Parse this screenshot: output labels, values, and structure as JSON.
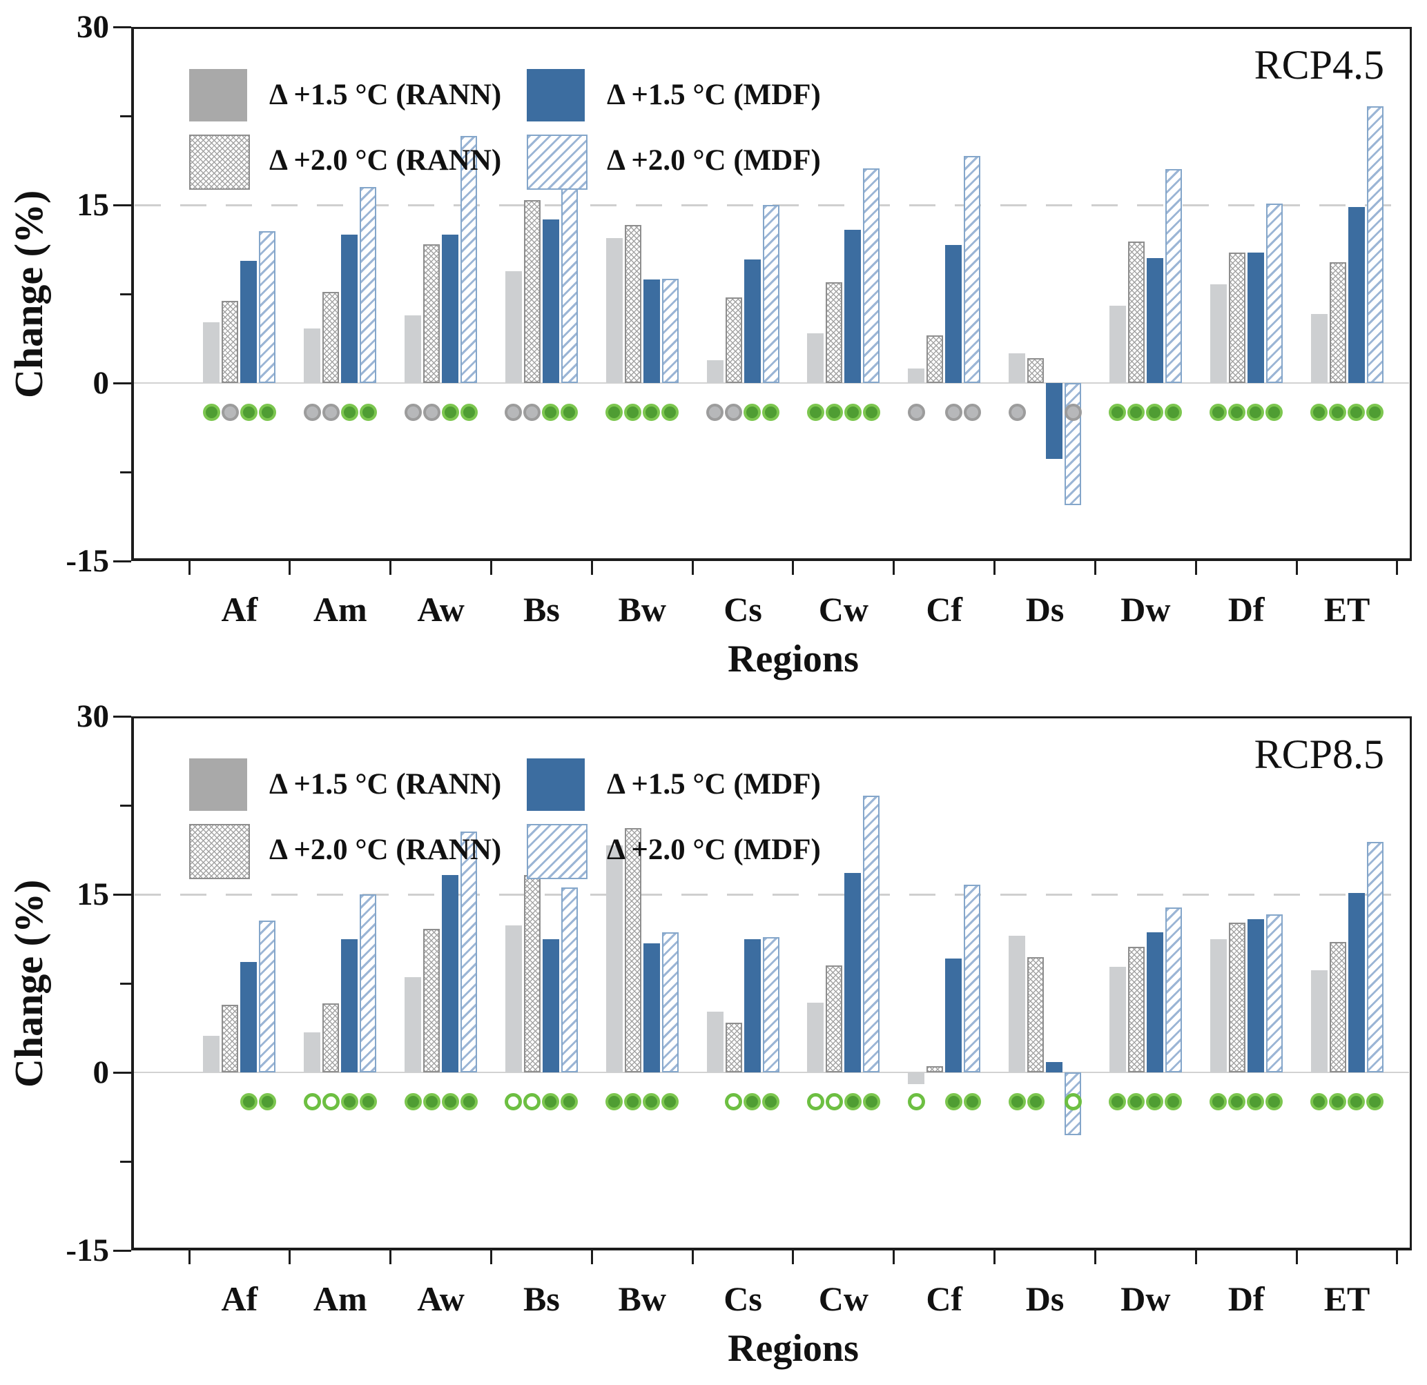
{
  "figure": {
    "ylabel": "Change (%)",
    "xlabel": "Regions",
    "legend": [
      {
        "label": "Δ +1.5 °C (RANN)",
        "style": "gray-solid"
      },
      {
        "label": "Δ +2.0 °C (RANN)",
        "style": "gray-crosshatch"
      },
      {
        "label": "Δ +1.5 °C (MDF)",
        "style": "blue-solid"
      },
      {
        "label": "Δ +2.0 °C (MDF)",
        "style": "blue-hatch"
      }
    ],
    "colors": {
      "bar_gray": "#cdcfd1",
      "legend_gray": "#a9a9a9",
      "bar_blue": "#3c6da0",
      "hatch_blue": "#9bb5d5",
      "hatch_blue_border": "#84a6ca",
      "hatch_gray": "#a3a3a3",
      "hatch_gray_border": "#8e8e8e",
      "axis_black": "#1c1c1c",
      "grid_gray": "#cfcfcf",
      "marker_green_fill": "#4f9d33",
      "marker_green_ring": "#7cc64f",
      "marker_gray_fill": "#b7b8ba",
      "marker_gray_ring": "#9c9c9c",
      "marker_open_ring": "#6dbf42"
    }
  },
  "chart_data": [
    {
      "type": "bar",
      "title": "RCP4.5",
      "xlabel": "Regions",
      "ylabel": "Change (%)",
      "ylim": [
        -15,
        30
      ],
      "ytick_values": [
        30,
        15,
        0,
        -15
      ],
      "ytick_labels": [
        "30",
        "15",
        "0",
        "-15"
      ],
      "minor_ytick_values": [
        22.5,
        7.5,
        -7.5
      ],
      "reference_line_y": 15,
      "grid": false,
      "legend_position": "top-left",
      "categories": [
        "Af",
        "Am",
        "Aw",
        "Bs",
        "Bw",
        "Cs",
        "Cw",
        "Cf",
        "Ds",
        "Dw",
        "Df",
        "ET"
      ],
      "series": [
        {
          "name": "Δ +1.5 °C (RANN)",
          "style": "gray-solid",
          "values": [
            5.1,
            4.6,
            5.7,
            9.4,
            12.2,
            1.9,
            4.2,
            1.2,
            2.5,
            6.5,
            8.3,
            5.8
          ]
        },
        {
          "name": "Δ +2.0 °C (RANN)",
          "style": "gray-crosshatch",
          "values": [
            6.9,
            7.7,
            11.7,
            15.4,
            13.3,
            7.2,
            8.5,
            4.0,
            2.1,
            11.9,
            11.0,
            10.2
          ]
        },
        {
          "name": "Δ +1.5 °C (MDF)",
          "style": "blue-solid",
          "values": [
            10.3,
            12.5,
            12.5,
            13.8,
            8.7,
            10.4,
            12.9,
            11.6,
            -6.4,
            10.5,
            11.0,
            14.8
          ]
        },
        {
          "name": "Δ +2.0 °C (MDF)",
          "style": "blue-hatch",
          "values": [
            12.8,
            16.5,
            20.8,
            17.9,
            8.8,
            15.0,
            18.1,
            19.1,
            -10.3,
            18.0,
            15.1,
            23.3
          ]
        }
      ],
      "significance_markers": [
        [
          "green",
          "gray",
          "green",
          "green"
        ],
        [
          "gray",
          "gray",
          "green",
          "green"
        ],
        [
          "gray",
          "gray",
          "green",
          "green"
        ],
        [
          "gray",
          "gray",
          "green",
          "green"
        ],
        [
          "green",
          "green",
          "green",
          "green"
        ],
        [
          "gray",
          "gray",
          "green",
          "green"
        ],
        [
          "green",
          "green",
          "green",
          "green"
        ],
        [
          "gray",
          null,
          "gray",
          "gray"
        ],
        [
          "gray",
          null,
          null,
          "gray"
        ],
        [
          "green",
          "green",
          "green",
          "green"
        ],
        [
          "green",
          "green",
          "green",
          "green"
        ],
        [
          "green",
          "green",
          "green",
          "green"
        ]
      ]
    },
    {
      "type": "bar",
      "title": "RCP8.5",
      "xlabel": "Regions",
      "ylabel": "Change (%)",
      "ylim": [
        -15,
        30
      ],
      "ytick_values": [
        30,
        15,
        0,
        -15
      ],
      "ytick_labels": [
        "30",
        "15",
        "0",
        "-15"
      ],
      "minor_ytick_values": [
        22.5,
        7.5,
        -7.5
      ],
      "reference_line_y": 15,
      "grid": false,
      "legend_position": "top-left",
      "categories": [
        "Af",
        "Am",
        "Aw",
        "Bs",
        "Bw",
        "Cs",
        "Cw",
        "Cf",
        "Ds",
        "Dw",
        "Df",
        "ET"
      ],
      "series": [
        {
          "name": "Δ +1.5 °C (RANN)",
          "style": "gray-solid",
          "values": [
            3.1,
            3.4,
            8.0,
            12.4,
            19.1,
            5.1,
            5.9,
            -1.0,
            11.5,
            8.9,
            11.2,
            8.6
          ]
        },
        {
          "name": "Δ +2.0 °C (RANN)",
          "style": "gray-crosshatch",
          "values": [
            5.7,
            5.8,
            12.1,
            16.6,
            20.6,
            4.2,
            9.0,
            0.5,
            9.7,
            10.6,
            12.6,
            11.0
          ]
        },
        {
          "name": "Δ +1.5 °C (MDF)",
          "style": "blue-solid",
          "values": [
            9.3,
            11.2,
            16.6,
            11.2,
            10.9,
            11.2,
            16.8,
            9.6,
            0.9,
            11.8,
            12.9,
            15.1
          ]
        },
        {
          "name": "Δ +2.0 °C (MDF)",
          "style": "blue-hatch",
          "values": [
            12.8,
            15.0,
            20.3,
            15.6,
            11.8,
            11.4,
            23.3,
            15.8,
            -5.3,
            13.9,
            13.3,
            19.4
          ]
        }
      ],
      "significance_markers": [
        [
          null,
          null,
          "green",
          "green"
        ],
        [
          "open",
          "open",
          "green",
          "green"
        ],
        [
          "green",
          "green",
          "green",
          "green"
        ],
        [
          "open",
          "open",
          "green",
          "green"
        ],
        [
          "green",
          "green",
          "green",
          "green"
        ],
        [
          null,
          "open",
          "green",
          "green"
        ],
        [
          "open",
          "open",
          "green",
          "green"
        ],
        [
          "open",
          null,
          "green",
          "green"
        ],
        [
          "green",
          "green",
          null,
          "open"
        ],
        [
          "green",
          "green",
          "green",
          "green"
        ],
        [
          "green",
          "green",
          "green",
          "green"
        ],
        [
          "green",
          "green",
          "green",
          "green"
        ]
      ]
    }
  ]
}
